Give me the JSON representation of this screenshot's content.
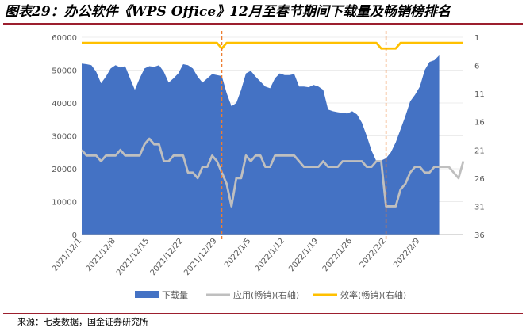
{
  "title": "图表29：办公软件《WPS Office》12月至春节期间下载量及畅销榜排名",
  "source": "来源：七麦数据，国金证券研究所",
  "colors": {
    "area": "#4472c4",
    "usage_line": "#bfbfbf",
    "efficiency_line": "#ffc000",
    "marker": "#ed7d31",
    "axis_text": "#595959",
    "grid": "#d9d9d9",
    "title_rule": "#9c1f2e"
  },
  "chart_data": {
    "type": "area",
    "title": "",
    "x_tick_labels": [
      "2021/12/1",
      "2021/12/8",
      "2021/12/15",
      "2021/12/22",
      "2021/12/29",
      "2022/1/5",
      "2022/1/12",
      "2022/1/19",
      "2022/1/26",
      "2022/2/2",
      "2022/2/9"
    ],
    "x_tick_indices": [
      0,
      7,
      14,
      21,
      28,
      35,
      42,
      49,
      56,
      63,
      70
    ],
    "ylim_left": [
      0,
      60000
    ],
    "yticks_left": [
      0,
      10000,
      20000,
      30000,
      40000,
      50000,
      60000
    ],
    "ylim_right": [
      36,
      1
    ],
    "yticks_right": [
      1,
      6,
      11,
      16,
      21,
      26,
      31,
      36
    ],
    "grid": true,
    "legend_position": "bottom",
    "marker_indices": [
      29,
      63
    ],
    "series": [
      {
        "name": "下载量",
        "kind": "area",
        "axis": "left",
        "values": [
          52000,
          51800,
          51500,
          49500,
          46000,
          48000,
          50500,
          51500,
          50800,
          51200,
          47500,
          44000,
          47500,
          50500,
          51200,
          51000,
          51500,
          49500,
          46200,
          47500,
          49000,
          51800,
          51500,
          50500,
          48000,
          46200,
          47500,
          48800,
          48500,
          48200,
          43000,
          39000,
          40000,
          44000,
          49000,
          49800,
          48000,
          46500,
          45000,
          44500,
          47500,
          49000,
          48500,
          48500,
          48800,
          45000,
          45000,
          44800,
          45500,
          45000,
          44000,
          38000,
          37500,
          37200,
          37000,
          36800,
          37500,
          36500,
          34000,
          30000,
          25500,
          22300,
          22500,
          23200,
          25000,
          28000,
          32000,
          36000,
          40500,
          42500,
          45000,
          50000,
          52500,
          53000,
          54500
        ]
      },
      {
        "name": "应用(畅销)(右轴)",
        "kind": "line",
        "axis": "right",
        "values": [
          21,
          22,
          22,
          22,
          23,
          22,
          22,
          22,
          21,
          22,
          22,
          22,
          22,
          20,
          19,
          20,
          20,
          23,
          23,
          22,
          22,
          22,
          25,
          25,
          26,
          24,
          24,
          22,
          23,
          25,
          27,
          31,
          26,
          26,
          22,
          23,
          22,
          22,
          24,
          24,
          22,
          22,
          22,
          22,
          22,
          23,
          24,
          24,
          24,
          24,
          23,
          24,
          24,
          24,
          23,
          23,
          23,
          23,
          23,
          24,
          24,
          23,
          23,
          31,
          31,
          31,
          28,
          27,
          25,
          24,
          24,
          25,
          25,
          24,
          24,
          24,
          24,
          25,
          26,
          23
        ]
      },
      {
        "name": "效率(畅销)(右轴)",
        "kind": "line",
        "axis": "right",
        "values": [
          2,
          2,
          2,
          2,
          2,
          2,
          2,
          2,
          2,
          2,
          2,
          2,
          2,
          2,
          2,
          2,
          2,
          2,
          2,
          2,
          2,
          2,
          2,
          2,
          2,
          2,
          2,
          2,
          2,
          3,
          2,
          2,
          2,
          2,
          2,
          2,
          2,
          2,
          2,
          2,
          2,
          2,
          2,
          2,
          2,
          2,
          2,
          2,
          2,
          2,
          2,
          2,
          2,
          2,
          2,
          2,
          2,
          2,
          2,
          2,
          2,
          2,
          3,
          3,
          3,
          3,
          2,
          2,
          2,
          2,
          2,
          2,
          2,
          2,
          2,
          2,
          2,
          2,
          2,
          2
        ]
      }
    ]
  }
}
